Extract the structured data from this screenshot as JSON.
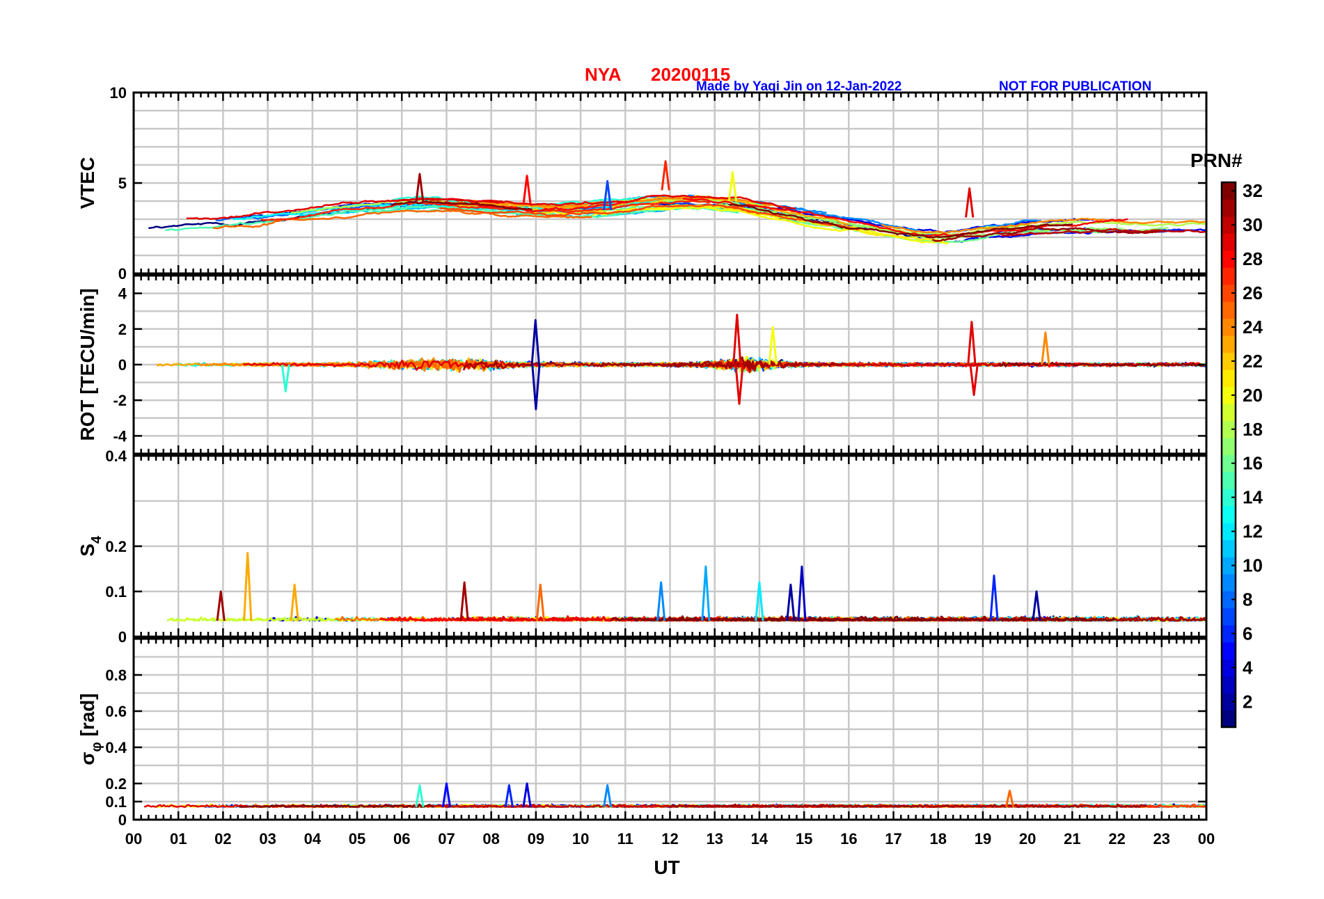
{
  "chart_data": {
    "type": "line",
    "title": {
      "station": "NYA",
      "date": "20200115",
      "credit": "Made by Yaqi Jin on 12-Jan-2022",
      "notice": "NOT FOR PUBLICATION",
      "red_color": "#ff0000",
      "blue_color": "#0000ff"
    },
    "xlabel": "UT",
    "xlim": [
      0,
      24
    ],
    "xticklabels": [
      "00",
      "01",
      "02",
      "03",
      "04",
      "05",
      "06",
      "07",
      "08",
      "09",
      "10",
      "11",
      "12",
      "13",
      "14",
      "15",
      "16",
      "17",
      "18",
      "19",
      "20",
      "21",
      "22",
      "23",
      "00"
    ],
    "panels": [
      {
        "name": "vtec",
        "ylabel": "VTEC",
        "ylim": [
          0,
          10
        ],
        "yticks": [
          0,
          5,
          10
        ],
        "yticklabels": [
          "0",
          "5",
          "10"
        ],
        "minor_grid_every": 1,
        "baseline_description": "values mostly between 1.5 and 6 TECU",
        "highlights": [
          {
            "x": 11.9,
            "y": 6.2,
            "prn": 27
          },
          {
            "x": 6.4,
            "y": 5.5,
            "prn": 31
          },
          {
            "x": 8.8,
            "y": 5.4,
            "prn": 28
          },
          {
            "x": 13.4,
            "y": 5.6,
            "prn": 20
          },
          {
            "x": 10.6,
            "y": 5.1,
            "prn": 7
          },
          {
            "x": 18.7,
            "y": 4.7,
            "prn": 29
          }
        ]
      },
      {
        "name": "rot",
        "ylabel": "ROT [TECU/min]",
        "ylim": [
          -5,
          5
        ],
        "yticks": [
          -4,
          -2,
          0,
          2,
          4
        ],
        "yticklabels": [
          "-4",
          "-2",
          "0",
          "2",
          "4"
        ],
        "minor_grid_every": 1,
        "baseline_description": "values fluctuate around 0, mostly within +/-1",
        "highlights": [
          {
            "x": 8.99,
            "y": 2.5,
            "prn": 2
          },
          {
            "x": 9.0,
            "y": -2.5,
            "prn": 2
          },
          {
            "x": 13.5,
            "y": 2.8,
            "prn": 29
          },
          {
            "x": 13.55,
            "y": -2.2,
            "prn": 29
          },
          {
            "x": 18.75,
            "y": 2.4,
            "prn": 29
          },
          {
            "x": 18.8,
            "y": -1.7,
            "prn": 29
          },
          {
            "x": 14.3,
            "y": 2.1,
            "prn": 20
          },
          {
            "x": 20.4,
            "y": 1.8,
            "prn": 24
          },
          {
            "x": 3.4,
            "y": -1.5,
            "prn": 14
          }
        ]
      },
      {
        "name": "s4",
        "ylabel": "S",
        "ylabel_subscript": "4",
        "ylim": [
          0,
          0.4
        ],
        "yticks": [
          0,
          0.1,
          0.2,
          0.4
        ],
        "yticklabels": [
          "0",
          "0.1",
          "0.2",
          "0.4"
        ],
        "minor_grid_every": 0.1,
        "baseline_description": "values mostly between 0.02 and 0.06",
        "highlights": [
          {
            "x": 2.55,
            "y": 0.185,
            "prn": 23
          },
          {
            "x": 12.8,
            "y": 0.155,
            "prn": 10
          },
          {
            "x": 14.95,
            "y": 0.155,
            "prn": 3
          },
          {
            "x": 19.25,
            "y": 0.135,
            "prn": 6
          },
          {
            "x": 14.0,
            "y": 0.12,
            "prn": 12
          },
          {
            "x": 11.8,
            "y": 0.12,
            "prn": 9
          },
          {
            "x": 7.4,
            "y": 0.12,
            "prn": 31
          },
          {
            "x": 14.7,
            "y": 0.115,
            "prn": 2
          },
          {
            "x": 3.6,
            "y": 0.115,
            "prn": 23
          },
          {
            "x": 9.1,
            "y": 0.115,
            "prn": 25
          },
          {
            "x": 20.2,
            "y": 0.1,
            "prn": 2
          },
          {
            "x": 1.95,
            "y": 0.1,
            "prn": 31
          }
        ]
      },
      {
        "name": "sigma_phi",
        "ylabel": "σ",
        "ylabel_subscript": "φ",
        "ylabel_suffix": "[rad]",
        "ylim": [
          0,
          1
        ],
        "yticks": [
          0,
          0.1,
          0.2,
          0.4,
          0.6,
          0.8
        ],
        "yticklabels": [
          "0",
          "0.1",
          "0.2",
          "0.4",
          "0.6",
          "0.8"
        ],
        "minor_grid_every": 0.1,
        "baseline_description": "values mostly between 0.04 and 0.12",
        "highlights": [
          {
            "x": 7.0,
            "y": 0.2,
            "prn": 5
          },
          {
            "x": 8.8,
            "y": 0.2,
            "prn": 4
          },
          {
            "x": 8.4,
            "y": 0.19,
            "prn": 6
          },
          {
            "x": 6.4,
            "y": 0.19,
            "prn": 14
          },
          {
            "x": 10.6,
            "y": 0.19,
            "prn": 9
          },
          {
            "x": 19.6,
            "y": 0.16,
            "prn": 25
          }
        ]
      }
    ],
    "colorbar": {
      "label": "PRN#",
      "min": 1,
      "max": 32,
      "ticks": [
        2,
        4,
        6,
        8,
        10,
        12,
        14,
        16,
        18,
        20,
        22,
        24,
        26,
        28,
        30,
        32
      ],
      "ticklabels": [
        "2",
        "4",
        "6",
        "8",
        "10",
        "12",
        "14",
        "16",
        "18",
        "20",
        "22",
        "24",
        "26",
        "28",
        "30",
        "32"
      ],
      "colormap": "jet",
      "levels": 32
    },
    "num_series": 32
  }
}
